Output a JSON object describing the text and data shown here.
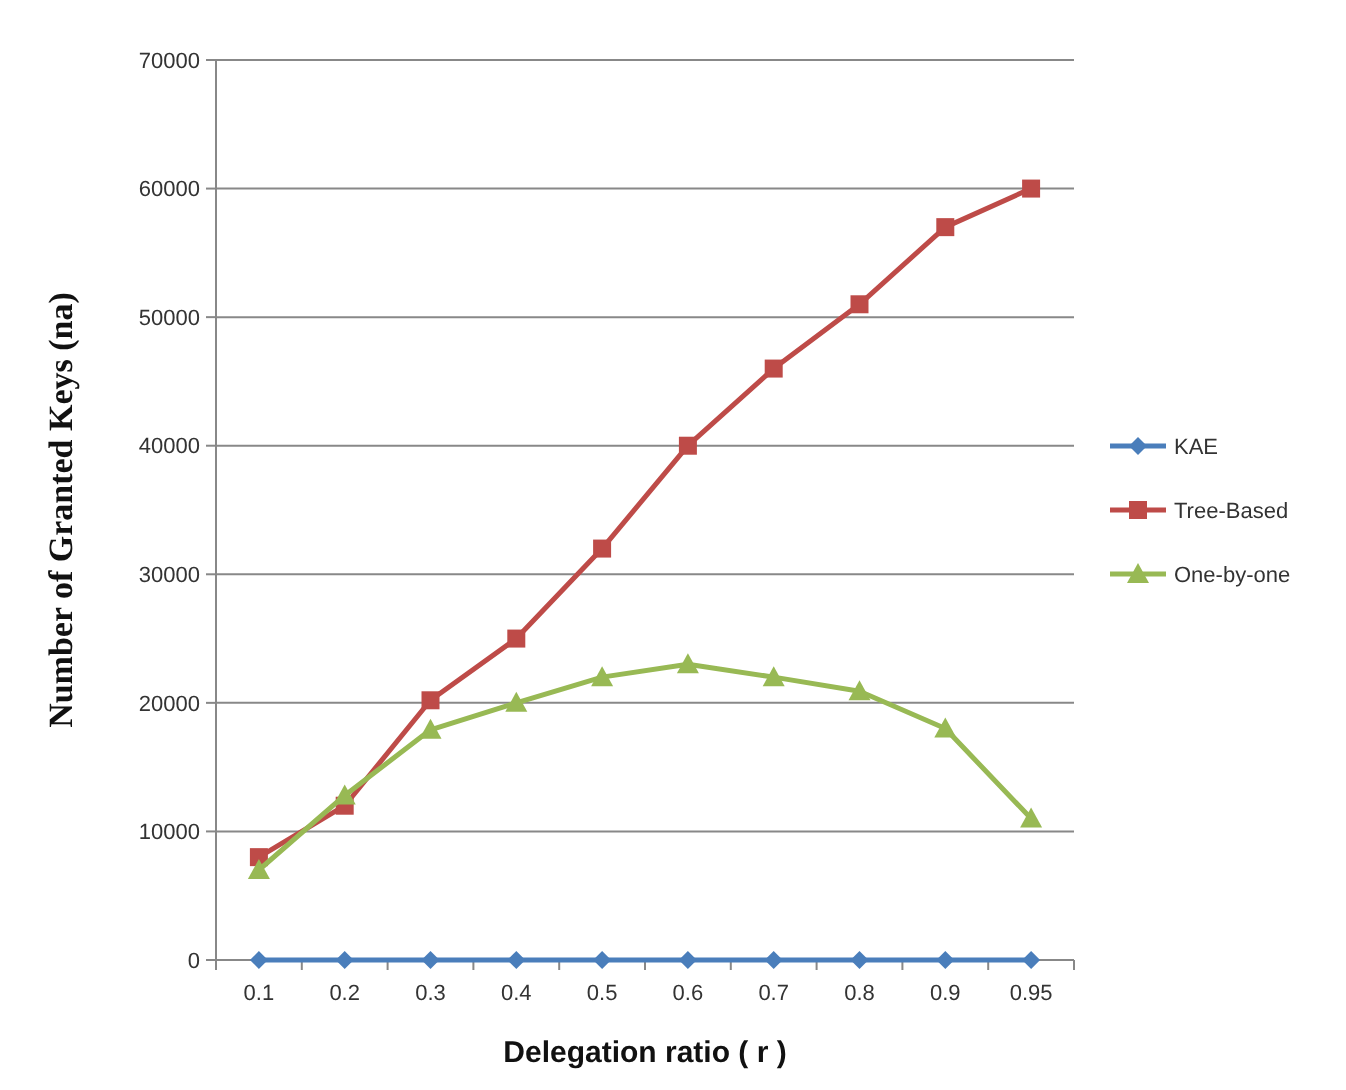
{
  "chart_data": {
    "type": "line",
    "xlabel": "Delegation ratio ( r )",
    "ylabel": "Number of Granted Keys (na)",
    "categories": [
      "0.1",
      "0.2",
      "0.3",
      "0.4",
      "0.5",
      "0.6",
      "0.7",
      "0.8",
      "0.9",
      "0.95"
    ],
    "series": [
      {
        "name": "KAE",
        "color": "#4a7ebb",
        "marker": "diamond",
        "values": [
          0,
          0,
          0,
          0,
          0,
          0,
          0,
          0,
          0,
          0
        ]
      },
      {
        "name": "Tree-Based",
        "color": "#be4b48",
        "marker": "square",
        "values": [
          8000,
          12000,
          20200,
          25000,
          32000,
          40000,
          46000,
          51000,
          57000,
          60000
        ]
      },
      {
        "name": "One-by-one",
        "color": "#98b954",
        "marker": "triangle",
        "values": [
          7000,
          12800,
          17900,
          20000,
          22000,
          23000,
          22000,
          20900,
          18000,
          11000
        ]
      }
    ],
    "ylim": [
      0,
      70000
    ],
    "yticks": [
      0,
      10000,
      20000,
      30000,
      40000,
      50000,
      60000,
      70000
    ],
    "grid": "y",
    "legend": "right"
  }
}
